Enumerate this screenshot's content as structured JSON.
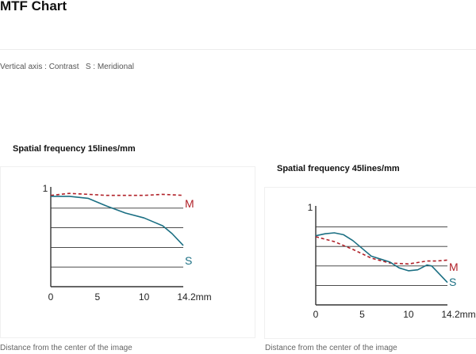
{
  "page": {
    "title": "MTF Chart",
    "note": "Vertical axis : Contrast   S : Meridional"
  },
  "colors": {
    "M": "#b02028",
    "S": "#1b6f83",
    "grid": "#333333"
  },
  "chart_data": [
    {
      "type": "line",
      "title": "Spatial frequency 15lines/mm",
      "xlabel": "Distance from the center of the image",
      "xticks": [
        "0",
        "5",
        "10",
        "14.2mm"
      ],
      "ytick_label": "1",
      "xlim": [
        0,
        14.2
      ],
      "ylim": [
        0,
        1
      ],
      "series": [
        {
          "name": "M",
          "dashed": true,
          "x": [
            0,
            2,
            4,
            6,
            8,
            10,
            12,
            14.2
          ],
          "y": [
            0.93,
            0.95,
            0.94,
            0.93,
            0.93,
            0.93,
            0.94,
            0.93
          ]
        },
        {
          "name": "S",
          "dashed": false,
          "x": [
            0,
            2,
            4,
            6,
            8,
            10,
            11,
            12,
            13,
            14.2
          ],
          "y": [
            0.92,
            0.92,
            0.9,
            0.82,
            0.75,
            0.7,
            0.66,
            0.62,
            0.54,
            0.42
          ]
        }
      ]
    },
    {
      "type": "line",
      "title": "Spatial frequency 45lines/mm",
      "xlabel": "Distance from the center of the image",
      "xticks": [
        "0",
        "5",
        "10",
        "14.2mm"
      ],
      "ytick_label": "1",
      "xlim": [
        0,
        14.2
      ],
      "ylim": [
        0,
        1
      ],
      "series": [
        {
          "name": "M",
          "dashed": true,
          "x": [
            0,
            2,
            4,
            6,
            8,
            10,
            12,
            13,
            14.2
          ],
          "y": [
            0.7,
            0.65,
            0.57,
            0.48,
            0.43,
            0.42,
            0.45,
            0.45,
            0.46
          ]
        },
        {
          "name": "S",
          "dashed": false,
          "x": [
            0,
            1,
            2,
            3,
            4,
            5,
            6,
            7,
            8,
            9,
            10,
            11,
            12,
            12.5,
            13,
            14.2
          ],
          "y": [
            0.71,
            0.73,
            0.74,
            0.72,
            0.66,
            0.58,
            0.5,
            0.47,
            0.44,
            0.38,
            0.35,
            0.36,
            0.41,
            0.4,
            0.35,
            0.23
          ]
        }
      ]
    }
  ]
}
